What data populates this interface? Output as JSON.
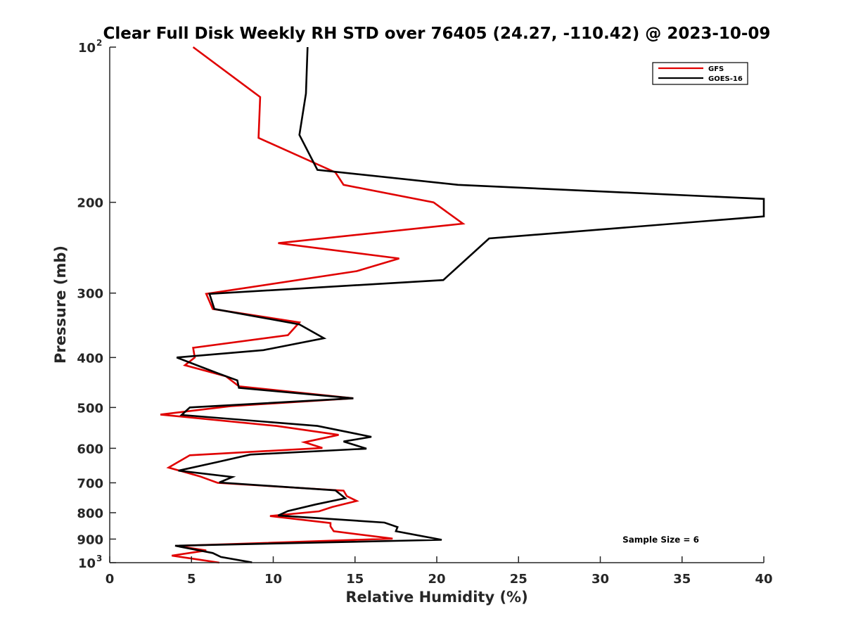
{
  "chart_data": {
    "type": "line",
    "title": "Clear Full Disk Weekly RH STD over 76405 (24.27, -110.42) @ 2023-10-09",
    "xlabel": "Relative Humidity (%)",
    "ylabel": "Pressure (mb)",
    "xlim": [
      0,
      40
    ],
    "ylim": [
      100,
      1000
    ],
    "yscale": "log",
    "y_reversed": true,
    "grid": false,
    "x_ticks": [
      0,
      5,
      10,
      15,
      20,
      25,
      30,
      35,
      40
    ],
    "x_tick_labels": [
      "0",
      "5",
      "10",
      "15",
      "20",
      "25",
      "30",
      "35",
      "40"
    ],
    "y_ticks": [
      {
        "value": 100,
        "label": "10",
        "sup": "2"
      },
      {
        "value": 200,
        "label": "200",
        "sup": ""
      },
      {
        "value": 300,
        "label": "300",
        "sup": ""
      },
      {
        "value": 400,
        "label": "400",
        "sup": ""
      },
      {
        "value": 500,
        "label": "500",
        "sup": ""
      },
      {
        "value": 600,
        "label": "600",
        "sup": ""
      },
      {
        "value": 700,
        "label": "700",
        "sup": ""
      },
      {
        "value": 800,
        "label": "800",
        "sup": ""
      },
      {
        "value": 900,
        "label": "900",
        "sup": ""
      },
      {
        "value": 1000,
        "label": "10",
        "sup": "3"
      }
    ],
    "legend_position": "top-right",
    "series": [
      {
        "name": "GFS",
        "color": "#e00000",
        "points": [
          [
            5.1,
            100
          ],
          [
            9.2,
            125
          ],
          [
            9.1,
            150
          ],
          [
            13.8,
            175
          ],
          [
            14.3,
            185
          ],
          [
            19.8,
            200
          ],
          [
            21.6,
            220
          ],
          [
            10.3,
            240
          ],
          [
            17.7,
            257
          ],
          [
            15.1,
            272
          ],
          [
            5.9,
            301
          ],
          [
            6.3,
            322
          ],
          [
            11.6,
            342
          ],
          [
            10.9,
            362
          ],
          [
            5.1,
            383
          ],
          [
            5.2,
            400
          ],
          [
            4.6,
            414
          ],
          [
            7.1,
            435
          ],
          [
            7.9,
            455
          ],
          [
            14.9,
            480
          ],
          [
            7.4,
            497
          ],
          [
            3.1,
            516
          ],
          [
            10.2,
            543
          ],
          [
            14.0,
            565
          ],
          [
            11.9,
            584
          ],
          [
            13.0,
            599
          ],
          [
            4.9,
            619
          ],
          [
            3.6,
            654
          ],
          [
            5.5,
            680
          ],
          [
            6.6,
            700
          ],
          [
            14.3,
            725
          ],
          [
            14.5,
            743
          ],
          [
            15.1,
            759
          ],
          [
            13.6,
            780
          ],
          [
            12.8,
            795
          ],
          [
            9.8,
            812
          ],
          [
            13.5,
            838
          ],
          [
            13.5,
            850
          ],
          [
            13.7,
            869
          ],
          [
            17.3,
            898
          ],
          [
            4.1,
            928
          ],
          [
            5.9,
            947
          ],
          [
            3.8,
            969
          ],
          [
            5.5,
            987
          ],
          [
            6.7,
            1000
          ]
        ]
      },
      {
        "name": "GOES-16",
        "color": "#000000",
        "points": [
          [
            12.1,
            100
          ],
          [
            12.0,
            123
          ],
          [
            11.6,
            148
          ],
          [
            12.7,
            173
          ],
          [
            21.3,
            185
          ],
          [
            40.0,
            197
          ],
          [
            40.0,
            213
          ],
          [
            37.6,
            216
          ],
          [
            23.2,
            235
          ],
          [
            20.4,
            283
          ],
          [
            6.1,
            301
          ],
          [
            6.4,
            322
          ],
          [
            11.6,
            345
          ],
          [
            13.1,
            367
          ],
          [
            9.4,
            387
          ],
          [
            4.1,
            400
          ],
          [
            6.6,
            429
          ],
          [
            7.8,
            443
          ],
          [
            7.9,
            458
          ],
          [
            14.9,
            480
          ],
          [
            4.9,
            500
          ],
          [
            4.4,
            517
          ],
          [
            12.7,
            543
          ],
          [
            16.0,
            570
          ],
          [
            14.3,
            582
          ],
          [
            15.7,
            601
          ],
          [
            8.6,
            617
          ],
          [
            6.6,
            638
          ],
          [
            4.2,
            663
          ],
          [
            7.5,
            682
          ],
          [
            6.7,
            699
          ],
          [
            13.8,
            724
          ],
          [
            14.4,
            750
          ],
          [
            12.6,
            771
          ],
          [
            10.9,
            794
          ],
          [
            10.3,
            810
          ],
          [
            16.8,
            836
          ],
          [
            17.6,
            853
          ],
          [
            17.5,
            869
          ],
          [
            20.3,
            903
          ],
          [
            4.0,
            927
          ],
          [
            6.3,
            958
          ],
          [
            6.8,
            975
          ],
          [
            8.7,
            999
          ]
        ]
      }
    ],
    "annotations": [
      {
        "text": "Sample Size = 6",
        "x": 33.7,
        "y": 900
      }
    ]
  }
}
